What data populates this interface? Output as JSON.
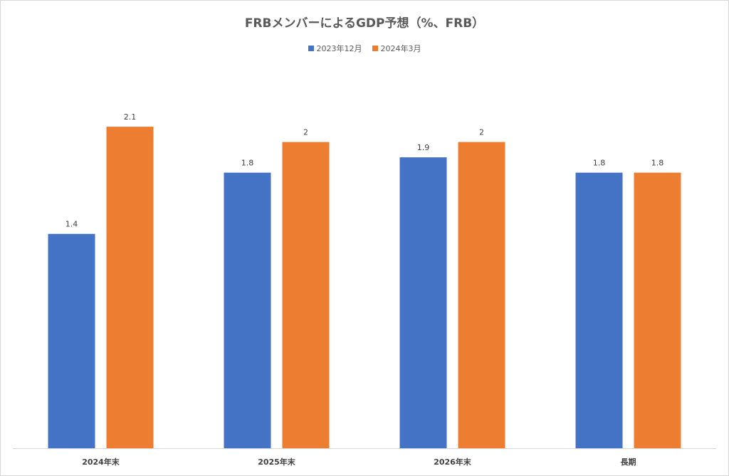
{
  "chart_data": {
    "type": "bar",
    "title": "FRBメンバーによるGDP予想（%、FRB）",
    "categories": [
      "2024年末",
      "2025年末",
      "2026年末",
      "長期"
    ],
    "series": [
      {
        "name": "2023年12月",
        "values": [
          1.4,
          1.8,
          1.9,
          1.8
        ],
        "color": "#4472C4"
      },
      {
        "name": "2024年3月",
        "values": [
          2.1,
          2,
          2,
          1.8
        ],
        "color": "#ED7D31"
      }
    ],
    "ylim": [
      0,
      2.1
    ],
    "data_labels": [
      "1.4",
      "2.1",
      "1.8",
      "2",
      "1.9",
      "2",
      "1.8",
      "1.8"
    ],
    "grid": false,
    "legend_position": "top"
  }
}
